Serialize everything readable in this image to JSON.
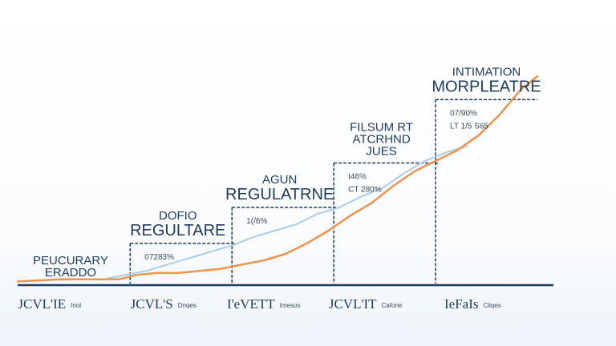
{
  "chart_data": {
    "type": "line",
    "xlim": [
      0,
      100
    ],
    "ylim": [
      0,
      100
    ],
    "grid": false,
    "colors": {
      "orange": "#f0944a",
      "blue": "#a9cde8",
      "frame": "#1e3a5f",
      "axis": "#1e3a5f"
    },
    "stages": [
      {
        "title": [
          "PEUCURARY",
          "ERADDO"
        ],
        "annotation": "",
        "tick": "JCVL'IE",
        "tick_sub": "Inol",
        "x_start": 0,
        "x_end": 21,
        "level": 0
      },
      {
        "title": [
          "DOFIO",
          "REGULTARE"
        ],
        "annotation": "07283%",
        "tick": "JCVL'S",
        "tick_sub": "Dnqes",
        "x_start": 21,
        "x_end": 40,
        "level": 19
      },
      {
        "title": [
          "AGUN",
          "REGULATRNE"
        ],
        "annotation": "1(/6%",
        "tick": "I'eVETT",
        "tick_sub": "Imesos",
        "x_start": 40,
        "x_end": 59,
        "level": 36
      },
      {
        "title": [
          "FILSUM RT",
          "ATCRHND",
          "JUES"
        ],
        "annotation": "I46%\nCT 280%",
        "tick": "JCVL'IT",
        "tick_sub": "Cafone",
        "x_start": 59,
        "x_end": 78,
        "level": 57
      },
      {
        "title": [
          "INTIMATION",
          "MORPLEATRE"
        ],
        "annotation": "07/90%\nLT 1/5 S65",
        "tick": "IeFaIs",
        "tick_sub": "Cliqes",
        "x_start": 78,
        "x_end": 97,
        "level": 87
      }
    ],
    "series": [
      {
        "color": "orange",
        "x": [
          0,
          8,
          16,
          19,
          22,
          26,
          30,
          34,
          38,
          42,
          46,
          50,
          54,
          58,
          62,
          66,
          70,
          74,
          78,
          82,
          86,
          90,
          94,
          97
        ],
        "y": [
          1,
          2,
          2,
          2,
          4,
          5,
          5,
          6,
          7,
          9,
          11,
          14,
          19,
          25,
          32,
          38,
          46,
          53,
          58,
          63,
          70,
          80,
          92,
          98
        ]
      },
      {
        "color": "blue",
        "x": [
          0,
          8,
          16,
          20,
          24,
          28,
          32,
          36,
          40,
          44,
          48,
          52,
          56,
          60,
          64,
          68,
          72,
          76,
          80,
          84
        ],
        "y": [
          1,
          2,
          2,
          4,
          6,
          9,
          12,
          15,
          18,
          22,
          25,
          28,
          33,
          36,
          41,
          45,
          52,
          58,
          62,
          65
        ]
      }
    ]
  }
}
